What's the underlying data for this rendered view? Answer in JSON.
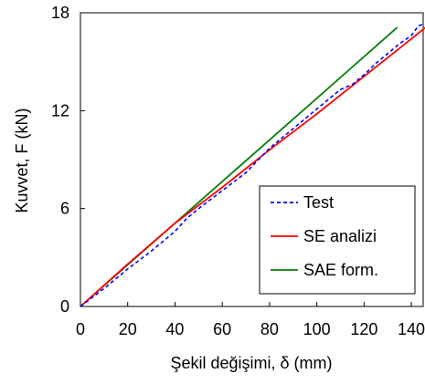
{
  "chart_data": {
    "type": "line",
    "xlabel": "Şekil değişimi, δ (mm)",
    "ylabel": "Kuvvet, F (kN)",
    "xlim": [
      0,
      145
    ],
    "ylim": [
      0,
      18
    ],
    "x_ticks": [
      0,
      20,
      40,
      60,
      80,
      100,
      120,
      140
    ],
    "y_ticks": [
      0,
      6,
      12,
      18
    ],
    "grid": false,
    "legend_position": "bottom-right",
    "series": [
      {
        "name": "Test",
        "color": "#0000ff",
        "style": "dashed",
        "x": [
          0,
          10,
          20,
          30,
          40,
          45,
          50,
          60,
          70,
          80,
          90,
          100,
          110,
          115,
          120,
          125,
          130,
          135,
          140,
          143,
          145
        ],
        "y": [
          0,
          1.1,
          2.3,
          3.4,
          4.6,
          5.4,
          6.0,
          7.1,
          8.2,
          9.7,
          10.9,
          12.1,
          13.3,
          13.6,
          14.2,
          14.9,
          15.5,
          16.1,
          16.6,
          17.2,
          17.3
        ]
      },
      {
        "name": "SE analizi",
        "color": "#ff0000",
        "style": "solid",
        "x": [
          0,
          20,
          40,
          60,
          80,
          100,
          120,
          140,
          146
        ],
        "y": [
          0,
          2.6,
          5.1,
          7.3,
          9.6,
          11.8,
          14.1,
          16.4,
          17.1
        ]
      },
      {
        "name": "SAE form.",
        "color": "#008000",
        "style": "solid",
        "x": [
          0,
          134
        ],
        "y": [
          0,
          17.1
        ]
      }
    ]
  }
}
